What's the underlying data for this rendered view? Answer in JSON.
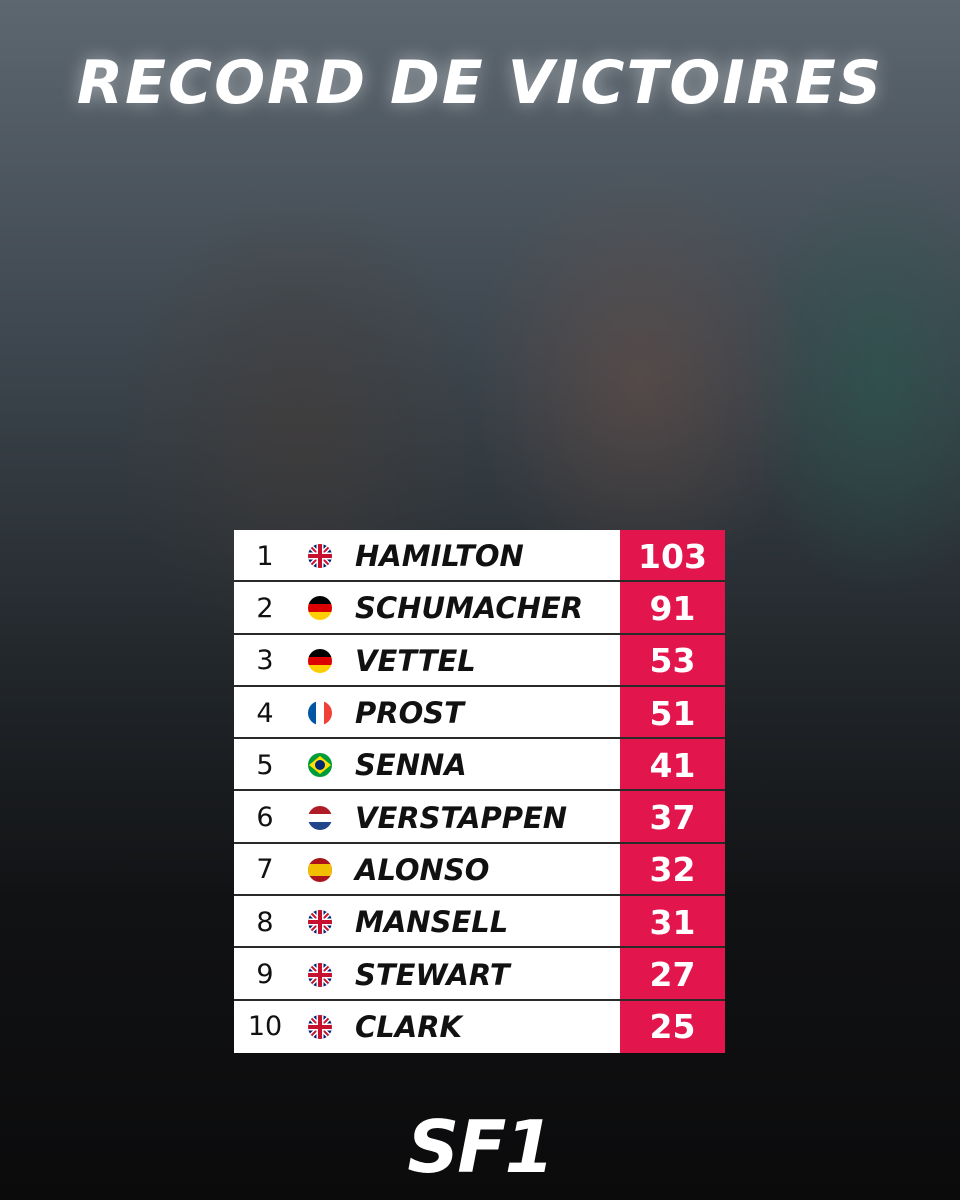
{
  "header": {
    "title": "RECORD DE VICTOIRES"
  },
  "table": {
    "rows": [
      {
        "rank": 1,
        "driver": "HAMILTON",
        "wins": 103
      },
      {
        "rank": 2,
        "driver": "SCHUMACHER",
        "wins": 91
      },
      {
        "rank": 3,
        "driver": "VETTEL",
        "wins": 53
      },
      {
        "rank": 4,
        "driver": "PROST",
        "wins": 51
      },
      {
        "rank": 5,
        "driver": "SENNA",
        "wins": 41
      },
      {
        "rank": 6,
        "driver": "VERSTAPPEN",
        "wins": 37
      },
      {
        "rank": 7,
        "driver": "ALONSO",
        "wins": 32
      },
      {
        "rank": 8,
        "driver": "MANSELL",
        "wins": 31
      },
      {
        "rank": 9,
        "driver": "STEWART",
        "wins": 27
      },
      {
        "rank": 10,
        "driver": "CLARK",
        "wins": 25
      }
    ]
  },
  "footer": {
    "logo": "SF1"
  }
}
